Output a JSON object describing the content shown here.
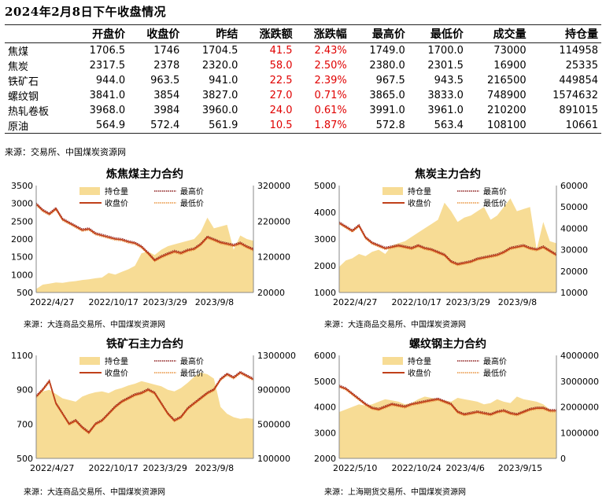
{
  "title": "2024年2月8日下午收盘情况",
  "table": {
    "headers": [
      "",
      "开盘价",
      "收盘价",
      "昨结",
      "涨跌额",
      "涨跌幅",
      "最高价",
      "最低价",
      "成交量",
      "持仓量"
    ],
    "rows": [
      [
        "焦煤",
        "1706.5",
        "1746",
        "1704.5",
        "41.5",
        "2.43%",
        "1749.0",
        "1700.0",
        "73000",
        "114958"
      ],
      [
        "焦炭",
        "2317.5",
        "2378",
        "2320.0",
        "58.0",
        "2.50%",
        "2380.0",
        "2301.5",
        "16900",
        "25335"
      ],
      [
        "铁矿石",
        "944.0",
        "963.5",
        "941.0",
        "22.5",
        "2.39%",
        "967.5",
        "943.5",
        "216500",
        "449854"
      ],
      [
        "螺纹钢",
        "3841.0",
        "3854",
        "3827.0",
        "27.0",
        "0.71%",
        "3865.0",
        "3833.0",
        "748900",
        "1574632"
      ],
      [
        "热轧卷板",
        "3968.0",
        "3984",
        "3960.0",
        "24.0",
        "0.61%",
        "3991.0",
        "3961.0",
        "210200",
        "891015"
      ],
      [
        "原油",
        "564.9",
        "572.4",
        "561.9",
        "10.5",
        "1.87%",
        "572.8",
        "563.4",
        "108100",
        "10661"
      ]
    ],
    "source": "来源：交易所、中国煤炭资源网"
  },
  "colors": {
    "area": "#f7dc95",
    "close": "#c0401a",
    "high": "#8b1a1a",
    "low": "#e8913a",
    "up": "#e00000"
  },
  "chart_data": [
    {
      "type": "line",
      "title": "炼焦煤主力合约",
      "legend": {
        "oi": "持仓量",
        "close": "收盘价",
        "high": "最高价",
        "low": "最低价"
      },
      "x_ticks": [
        "2022/4/27",
        "2022/10/17",
        "2023/3/29",
        "2023/9/8"
      ],
      "ylim_left": [
        500,
        3500
      ],
      "yticks_left": [
        "500",
        "1000",
        "1500",
        "2000",
        "2500",
        "3000",
        "3500"
      ],
      "ylim_right": [
        20000,
        320000
      ],
      "yticks_right": [
        "20000",
        "120000",
        "220000",
        "320000"
      ],
      "close": [
        2980,
        2800,
        2700,
        2850,
        2550,
        2450,
        2350,
        2250,
        2280,
        2150,
        2100,
        2050,
        2000,
        1980,
        1920,
        1880,
        1780,
        1600,
        1400,
        1500,
        1580,
        1650,
        1600,
        1680,
        1720,
        1850,
        2050,
        1980,
        1900,
        1860,
        1820,
        1880,
        1780,
        1700
      ],
      "oi": [
        30000,
        42000,
        45000,
        48000,
        47000,
        50000,
        52000,
        55000,
        57000,
        60000,
        62000,
        75000,
        70000,
        78000,
        85000,
        95000,
        130000,
        135000,
        125000,
        140000,
        150000,
        155000,
        160000,
        165000,
        170000,
        190000,
        230000,
        200000,
        205000,
        210000,
        140000,
        180000,
        170000,
        165000
      ],
      "source": "来源：大连商品交易所、中国煤炭资源网"
    },
    {
      "type": "line",
      "title": "焦炭主力合约",
      "legend": {
        "oi": "持仓量",
        "close": "收盘价",
        "high": "最高价",
        "low": "最低价"
      },
      "x_ticks": [
        "2022/4/27",
        "2022/10/17",
        "2023/3/29",
        "2023/9/8"
      ],
      "ylim_left": [
        1000,
        5000
      ],
      "yticks_left": [
        "1000",
        "2000",
        "3000",
        "4000",
        "5000"
      ],
      "ylim_right": [
        10000,
        60000
      ],
      "yticks_right": [
        "10000",
        "20000",
        "30000",
        "40000",
        "50000",
        "60000"
      ],
      "close": [
        3600,
        3450,
        3300,
        3500,
        3050,
        2850,
        2750,
        2650,
        2700,
        2750,
        2700,
        2650,
        2750,
        2650,
        2600,
        2500,
        2400,
        2150,
        2050,
        2100,
        2150,
        2250,
        2300,
        2350,
        2400,
        2500,
        2650,
        2700,
        2750,
        2650,
        2600,
        2700,
        2550,
        2400
      ],
      "oi": [
        22000,
        25000,
        26000,
        28000,
        27000,
        29000,
        30000,
        28000,
        32000,
        33000,
        34000,
        36000,
        38000,
        40000,
        42000,
        44000,
        52000,
        48000,
        43000,
        45000,
        46000,
        48000,
        50000,
        44000,
        46000,
        50000,
        54000,
        48000,
        49000,
        50000,
        30000,
        43000,
        34000,
        33000
      ],
      "source": "来源：大连商品交易所、中国煤炭资源网"
    },
    {
      "type": "line",
      "title": "铁矿石主力合约",
      "legend": {
        "oi": "持仓量",
        "close": "收盘价",
        "high": "最高价",
        "low": "最低价"
      },
      "x_ticks": [
        "2022/4/27",
        "2022/10/17",
        "2023/3/29",
        "2023/9/8"
      ],
      "ylim_left": [
        500,
        1100
      ],
      "yticks_left": [
        "500",
        "700",
        "900",
        "1100"
      ],
      "ylim_right": [
        100000,
        1300000
      ],
      "yticks_right": [
        "100000",
        "500000",
        "900000",
        "1300000"
      ],
      "close": [
        860,
        900,
        950,
        820,
        760,
        700,
        720,
        680,
        650,
        700,
        720,
        760,
        800,
        830,
        850,
        870,
        880,
        900,
        880,
        820,
        760,
        720,
        740,
        790,
        820,
        850,
        880,
        900,
        960,
        990,
        970,
        1000,
        980,
        960
      ],
      "oi": [
        820000,
        880000,
        900000,
        850000,
        800000,
        780000,
        760000,
        820000,
        850000,
        870000,
        880000,
        860000,
        900000,
        920000,
        950000,
        970000,
        1000000,
        980000,
        960000,
        940000,
        900000,
        880000,
        920000,
        980000,
        1050000,
        1100000,
        1080000,
        1030000,
        700000,
        620000,
        580000,
        560000,
        570000,
        560000
      ],
      "source": "来源：大连商品交易所、中国煤炭资源网"
    },
    {
      "type": "line",
      "title": "螺纹钢主力合约",
      "legend": {
        "oi": "持仓量",
        "close": "收盘价",
        "high": "最高价",
        "low": "最低价"
      },
      "x_ticks": [
        "2022/5/10",
        "2022/10/24",
        "2023/4/6",
        "2023/9/15"
      ],
      "ylim_left": [
        2000,
        6000
      ],
      "yticks_left": [
        "2000",
        "3000",
        "4000",
        "5000",
        "6000"
      ],
      "ylim_right": [
        0,
        4000000
      ],
      "yticks_right": [
        "0",
        "1000000",
        "2000000",
        "3000000",
        "4000000"
      ],
      "close": [
        4800,
        4700,
        4500,
        4300,
        4100,
        3950,
        3900,
        4000,
        4100,
        4050,
        4000,
        4100,
        4150,
        4200,
        4250,
        4300,
        4200,
        4100,
        3800,
        3700,
        3750,
        3800,
        3750,
        3700,
        3800,
        3850,
        3750,
        3700,
        3800,
        3900,
        3950,
        3950,
        3850,
        3850
      ],
      "oi": [
        1800000,
        1900000,
        2000000,
        2100000,
        2050000,
        2100000,
        2200000,
        2300000,
        2250000,
        2200000,
        2100000,
        2150000,
        2300000,
        2400000,
        2350000,
        2300000,
        2250000,
        2200000,
        2350000,
        2300000,
        2250000,
        2200000,
        2100000,
        2150000,
        2300000,
        2200000,
        2150000,
        2400000,
        2300000,
        2250000,
        2200000,
        2100000,
        1900000,
        1800000
      ],
      "source": "来源：上海期货交易所、中国煤炭资源网"
    }
  ]
}
